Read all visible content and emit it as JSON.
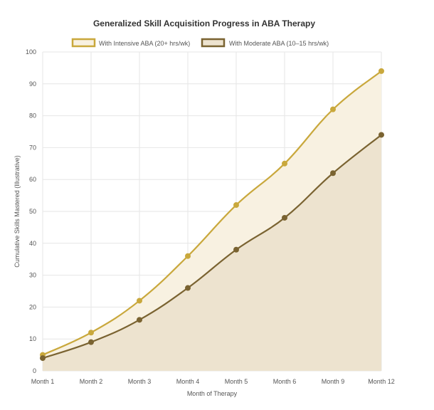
{
  "chart_data": {
    "type": "area",
    "title": "Generalized Skill Acquisition Progress in ABA Therapy",
    "xlabel": "Month of Therapy",
    "ylabel": "Cumulative Skills Mastered (Illustrative)",
    "categories": [
      "Month 1",
      "Month 2",
      "Month 3",
      "Month 4",
      "Month 5",
      "Month 6",
      "Month 9",
      "Month 12"
    ],
    "ylim": [
      0,
      100
    ],
    "yticks": [
      0,
      10,
      20,
      30,
      40,
      50,
      60,
      70,
      80,
      90,
      100
    ],
    "grid": true,
    "legend_position": "top-center",
    "series": [
      {
        "name": "With Intensive ABA (20+ hrs/wk)",
        "values": [
          5,
          12,
          22,
          36,
          52,
          65,
          82,
          94
        ],
        "color": "#c9a83c",
        "fill": "#f8f1e1"
      },
      {
        "name": "With Moderate ABA (10–15 hrs/wk)",
        "values": [
          4,
          9,
          16,
          26,
          38,
          48,
          62,
          74
        ],
        "color": "#7a6331",
        "fill": "#ede3cf"
      }
    ]
  }
}
